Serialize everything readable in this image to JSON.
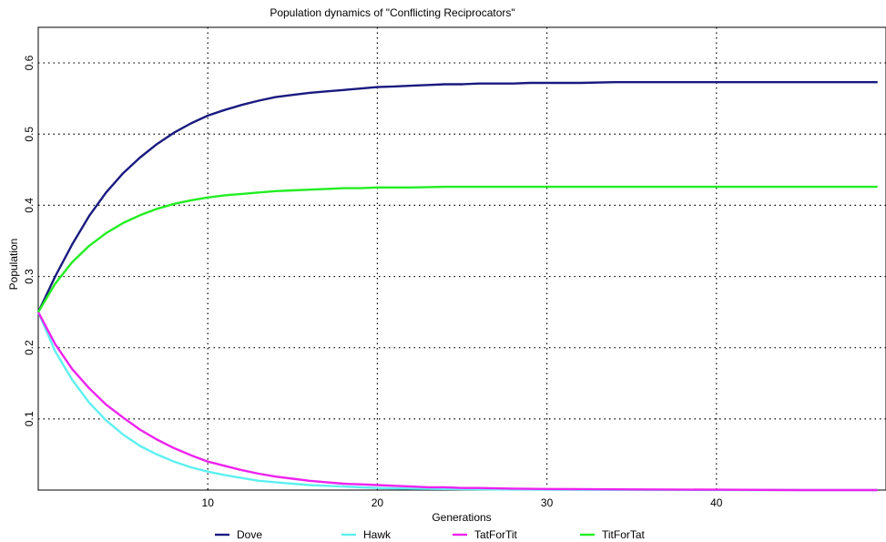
{
  "chart_data": {
    "type": "line",
    "title": "Population dynamics of \"Conflicting Reciprocators\"",
    "xlabel": "Generations",
    "ylabel": "Population",
    "xlim": [
      0,
      50
    ],
    "ylim": [
      0,
      0.65
    ],
    "xticks": [
      10,
      20,
      30,
      40
    ],
    "yticks": [
      0.1,
      0.2,
      0.3,
      0.4,
      0.5,
      0.6
    ],
    "xtick_labels": [
      "10",
      "20",
      "30",
      "40"
    ],
    "ytick_labels": [
      "0.1",
      "0.2",
      "0.3",
      "0.4",
      "0.5",
      "0.6"
    ],
    "grid": true,
    "legend_position": "bottom",
    "series": [
      {
        "name": "Dove",
        "color": "#1a1a80",
        "x": [
          0,
          1,
          2,
          3,
          4,
          5,
          6,
          7,
          8,
          9,
          10,
          11,
          12,
          13,
          14,
          15,
          16,
          17,
          18,
          19,
          20,
          21,
          22,
          23,
          24,
          25,
          26,
          27,
          28,
          29,
          30,
          32,
          34,
          36,
          38,
          40,
          42,
          44,
          46,
          48,
          49.5
        ],
        "y": [
          0.25,
          0.3,
          0.345,
          0.385,
          0.418,
          0.445,
          0.467,
          0.486,
          0.502,
          0.515,
          0.526,
          0.534,
          0.541,
          0.547,
          0.552,
          0.555,
          0.558,
          0.56,
          0.562,
          0.564,
          0.566,
          0.567,
          0.568,
          0.569,
          0.57,
          0.57,
          0.571,
          0.571,
          0.571,
          0.572,
          0.572,
          0.572,
          0.573,
          0.573,
          0.573,
          0.573,
          0.573,
          0.573,
          0.573,
          0.573,
          0.573
        ]
      },
      {
        "name": "Hawk",
        "color": "#5ef0f0",
        "x": [
          0,
          1,
          2,
          3,
          4,
          5,
          6,
          7,
          8,
          9,
          10,
          11,
          12,
          13,
          14,
          15,
          16,
          17,
          18,
          19,
          20,
          22,
          24,
          26,
          28,
          30,
          34,
          40,
          45,
          49.5
        ],
        "y": [
          0.25,
          0.195,
          0.155,
          0.123,
          0.098,
          0.078,
          0.062,
          0.05,
          0.04,
          0.032,
          0.026,
          0.021,
          0.017,
          0.013,
          0.011,
          0.009,
          0.007,
          0.006,
          0.005,
          0.004,
          0.003,
          0.002,
          0.0015,
          0.001,
          0.0008,
          0.0005,
          0.0003,
          0.0001,
          0.0,
          0.0
        ]
      },
      {
        "name": "TatForTit",
        "color": "#ee22ee",
        "x": [
          0,
          1,
          2,
          3,
          4,
          5,
          6,
          7,
          8,
          9,
          10,
          11,
          12,
          13,
          14,
          15,
          16,
          17,
          18,
          19,
          20,
          21,
          22,
          23,
          24,
          25,
          26,
          28,
          30,
          34,
          40,
          45,
          49.5
        ],
        "y": [
          0.25,
          0.205,
          0.17,
          0.143,
          0.12,
          0.102,
          0.085,
          0.071,
          0.059,
          0.049,
          0.04,
          0.034,
          0.028,
          0.023,
          0.019,
          0.016,
          0.013,
          0.011,
          0.009,
          0.008,
          0.007,
          0.006,
          0.005,
          0.004,
          0.004,
          0.003,
          0.003,
          0.002,
          0.0015,
          0.001,
          0.0005,
          0.0,
          0.0
        ]
      },
      {
        "name": "TitForTat",
        "color": "#22ee22",
        "x": [
          0,
          1,
          2,
          3,
          4,
          5,
          6,
          7,
          8,
          9,
          10,
          11,
          12,
          13,
          14,
          15,
          16,
          17,
          18,
          19,
          20,
          22,
          24,
          26,
          28,
          30,
          34,
          40,
          45,
          49.5
        ],
        "y": [
          0.25,
          0.29,
          0.32,
          0.343,
          0.361,
          0.375,
          0.386,
          0.395,
          0.402,
          0.407,
          0.411,
          0.414,
          0.416,
          0.418,
          0.42,
          0.421,
          0.422,
          0.423,
          0.424,
          0.424,
          0.425,
          0.425,
          0.426,
          0.426,
          0.426,
          0.426,
          0.426,
          0.426,
          0.426,
          0.426
        ]
      }
    ]
  }
}
